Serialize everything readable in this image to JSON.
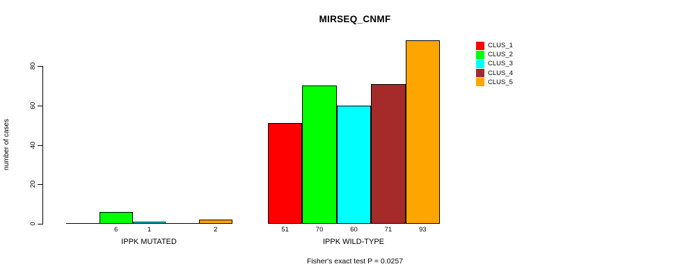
{
  "chart_data": {
    "type": "bar",
    "title": "MIRSEQ_CNMF",
    "subtitle": "Fisher's exact test P = 0.0257",
    "ylabel": "number of cases",
    "xlabel": "",
    "yticks": [
      0,
      20,
      40,
      60,
      80
    ],
    "ylim": [
      0,
      93
    ],
    "grid": false,
    "legend_position": "right",
    "series": [
      "CLUS_1",
      "CLUS_2",
      "CLUS_3",
      "CLUS_4",
      "CLUS_5"
    ],
    "colors": [
      "#FF0000",
      "#00FF00",
      "#00FFFF",
      "#A52A2A",
      "#FFA500"
    ],
    "groups": [
      {
        "label": "IPPK MUTATED",
        "values": [
          0,
          6,
          1,
          0,
          2
        ],
        "bar_labels": [
          "",
          "6",
          "1",
          "",
          "2"
        ]
      },
      {
        "label": "IPPK WILD-TYPE",
        "values": [
          51,
          70,
          60,
          71,
          93
        ],
        "bar_labels": [
          "51",
          "70",
          "60",
          "71",
          "93"
        ]
      }
    ]
  }
}
